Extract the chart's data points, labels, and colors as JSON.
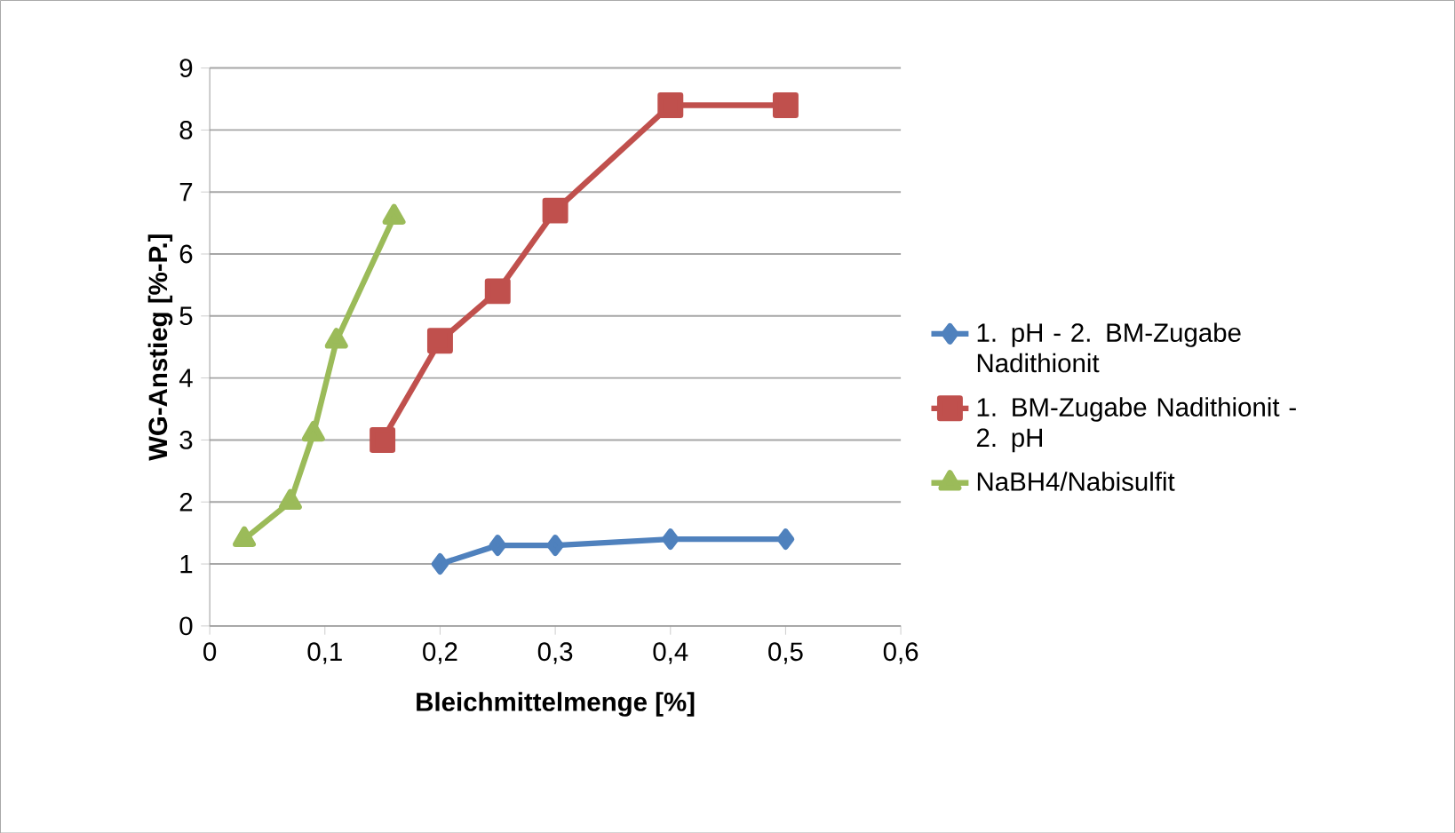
{
  "chart_data": {
    "type": "line",
    "xlabel": "Bleichmittelmenge [%]",
    "ylabel": "WG-Anstieg [%-P.]",
    "xlim": [
      0,
      0.6
    ],
    "ylim": [
      0,
      9
    ],
    "xticks": [
      0,
      {
        "value": 0.1,
        "label": "0,1"
      },
      {
        "value": 0.2,
        "label": "0,2"
      },
      {
        "value": 0.3,
        "label": "0,3"
      },
      {
        "value": 0.4,
        "label": "0,4"
      },
      {
        "value": 0.5,
        "label": "0,5"
      },
      {
        "value": 0.6,
        "label": "0,6"
      }
    ],
    "yticks": [
      0,
      1,
      2,
      3,
      4,
      5,
      6,
      7,
      8,
      9
    ],
    "grid": "y",
    "legend": "right",
    "series": [
      {
        "name": "1. pH - 2. BM-Zugabe Nadithionit",
        "color": "#4f81bd",
        "marker": "diamond",
        "x": [
          0.2,
          0.25,
          0.3,
          0.4,
          0.5
        ],
        "values": [
          1.0,
          1.3,
          1.3,
          1.4,
          1.4
        ]
      },
      {
        "name": "1. BM-Zugabe Nadithionit - 2. pH",
        "color": "#c0504d",
        "marker": "square",
        "x": [
          0.15,
          0.2,
          0.25,
          0.3,
          0.4,
          0.5
        ],
        "values": [
          3.0,
          4.6,
          5.4,
          6.7,
          8.4,
          8.4
        ]
      },
      {
        "name": "NaBH4/Nabisulfit",
        "color": "#9bbb59",
        "marker": "triangle",
        "x": [
          0.03,
          0.07,
          0.09,
          0.11,
          0.16
        ],
        "values": [
          1.4,
          2.0,
          3.1,
          4.6,
          6.6
        ]
      }
    ]
  }
}
